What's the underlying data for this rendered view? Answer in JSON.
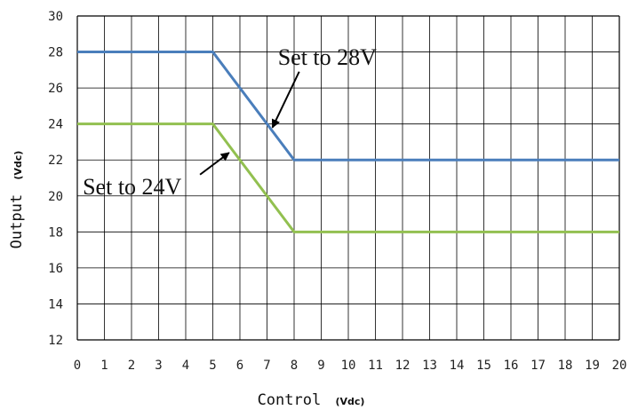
{
  "chart_data": {
    "type": "line",
    "xlabel": "Control",
    "xlabel_unit": "(Vdc)",
    "ylabel": "Output",
    "ylabel_unit": "(Vdc)",
    "xlim": [
      0,
      20
    ],
    "ylim": [
      12,
      30
    ],
    "x_ticks": [
      "0",
      "1",
      "2",
      "3",
      "4",
      "5",
      "6",
      "7",
      "8",
      "9",
      "10",
      "11",
      "12",
      "13",
      "14",
      "15",
      "16",
      "17",
      "18",
      "19",
      "20"
    ],
    "y_ticks": [
      "12",
      "14",
      "16",
      "18",
      "20",
      "22",
      "24",
      "26",
      "28",
      "30"
    ],
    "grid": true,
    "series": [
      {
        "color": "#4a7ebb",
        "x": [
          0,
          5,
          8,
          20
        ],
        "y": [
          28,
          28,
          22,
          22
        ]
      },
      {
        "color": "#92c050",
        "x": [
          0,
          5,
          8,
          20
        ],
        "y": [
          24,
          24,
          18,
          18
        ]
      }
    ],
    "annotations": [
      {
        "text": "Set to 28V",
        "series": 0,
        "x": 7.2,
        "y": 23.8,
        "text_x": 7.4,
        "text_y": 27.3
      },
      {
        "text": "Set to 24V",
        "series": 1,
        "x": 5.6,
        "y": 22.4,
        "text_x": 0.2,
        "text_y": 20.1
      }
    ]
  }
}
